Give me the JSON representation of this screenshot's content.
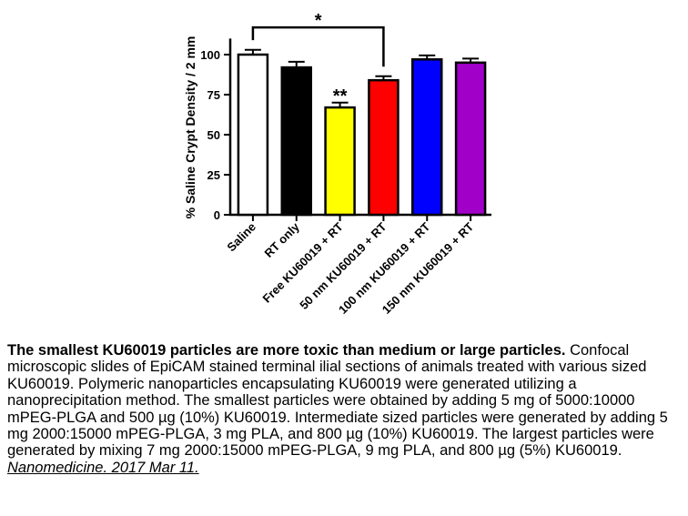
{
  "chart_data": {
    "type": "bar",
    "ylabel": "% Saline Crypt Density / 2 mm",
    "ylim": [
      0,
      110
    ],
    "yticks": [
      0,
      25,
      50,
      75,
      100
    ],
    "categories": [
      "Saline",
      "RT only",
      "Free KU60019 + RT",
      "50 nm KU60019 + RT",
      "100 nm KU60019 + RT",
      "150 nm KU60019 + RT"
    ],
    "values": [
      100,
      92,
      67,
      84,
      97,
      95
    ],
    "errors": [
      3,
      3.5,
      3,
      2.5,
      2.5,
      2.5
    ],
    "colors": [
      "#ffffff",
      "#000000",
      "#ffff00",
      "#ff0000",
      "#0000ff",
      "#a000c8"
    ],
    "bar_edge_color": "#000000",
    "annotations": [
      {
        "text": "**",
        "category": "Free KU60019 + RT"
      },
      {
        "text": "*",
        "bracket": [
          "Saline",
          "50 nm KU60019 + RT"
        ]
      }
    ],
    "grid": false,
    "legend": "none"
  },
  "caption": {
    "title": "The smallest KU60019 particles are more toxic than medium or large particles.",
    "body": "Confocal microscopic slides of EpiCAM stained terminal ilial sections of animals treated with various sized KU60019. Polymeric nanoparticles encapsulating KU60019 were generated utilizing a nanoprecipitation method. The smallest particles were obtained by adding 5 mg of 5000:10000 mPEG-PLGA and 500 µg (10%) KU60019. Intermediate sized particles were generated by adding 5 mg 2000:15000 mPEG-PLGA, 3 mg PLA, and 800 µg (10%) KU60019. The largest particles were generated by mixing 7 mg 2000:15000 mPEG-PLGA, 9 mg PLA, and 800 µg (5%) KU60019.",
    "link": "Nanomedicine. 2017 Mar 11."
  }
}
